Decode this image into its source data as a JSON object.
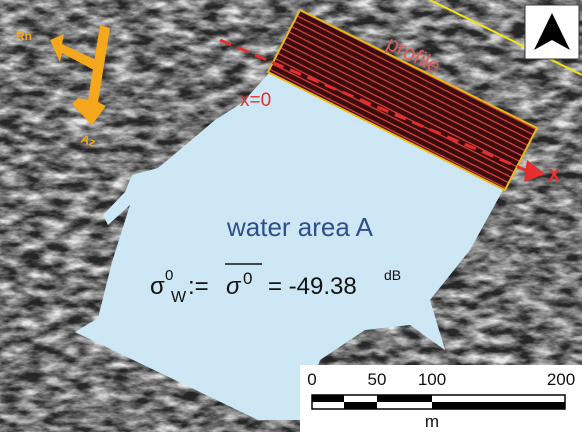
{
  "orientation": {
    "range_label": "Rn",
    "azimuth_label": "Az"
  },
  "profile": {
    "label": "profile",
    "start_label": "x=0",
    "axis_label": "x"
  },
  "water_area": {
    "label": "water area A",
    "formula": {
      "lhs_symbol": "σ",
      "lhs_sup": "0",
      "lhs_sub": "W",
      "assign": ":=",
      "rhs_symbol": "σ",
      "rhs_sup": "0",
      "value": "= -49.38",
      "unit": "dB"
    }
  },
  "scale_bar": {
    "labels": [
      "0",
      "50",
      "100",
      "200"
    ],
    "unit": "m"
  }
}
